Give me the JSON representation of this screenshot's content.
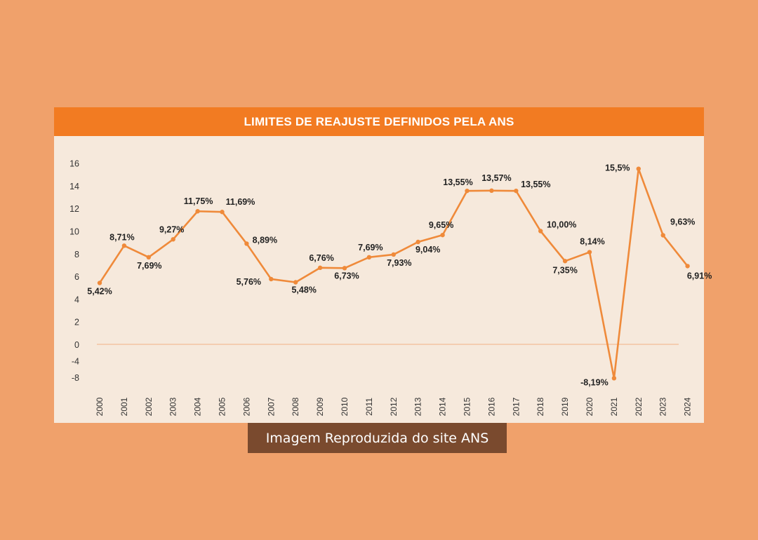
{
  "chart_data": {
    "type": "line",
    "title": "LIMITES DE REAJUSTE DEFINIDOS PELA ANS",
    "x": [
      "2000",
      "2001",
      "2002",
      "2003",
      "2004",
      "2005",
      "2006",
      "2007",
      "2008",
      "2009",
      "2010",
      "2011",
      "2012",
      "2013",
      "2014",
      "2015",
      "2016",
      "2017",
      "2018",
      "2019",
      "2020",
      "2021",
      "2022",
      "2023",
      "2024"
    ],
    "series": [
      {
        "values": [
          5.42,
          8.71,
          7.69,
          9.27,
          11.75,
          11.69,
          8.89,
          5.76,
          5.48,
          6.76,
          6.73,
          7.69,
          7.93,
          9.04,
          9.65,
          13.55,
          13.57,
          13.55,
          10.0,
          7.35,
          8.14,
          -8.19,
          15.5,
          9.63,
          6.91
        ],
        "labels": [
          "5,42%",
          "8,71%",
          "7,69%",
          "9,27%",
          "11,75%",
          "11,69%",
          "8,89%",
          "5,76%",
          "5,48%",
          "6,76%",
          "6,73%",
          "7,69%",
          "7,93%",
          "9,04%",
          "9,65%",
          "13,55%",
          "13,57%",
          "13,55%",
          "10,00%",
          "7,35%",
          "8,14%",
          "-8,19%",
          "15,5%",
          "9,63%",
          "6,91%"
        ]
      }
    ],
    "yticks": [
      {
        "value": 16,
        "label": "16"
      },
      {
        "value": 14,
        "label": "14"
      },
      {
        "value": 12,
        "label": "12"
      },
      {
        "value": 10,
        "label": "10"
      },
      {
        "value": 8,
        "label": "8"
      },
      {
        "value": 6,
        "label": "6"
      },
      {
        "value": 4,
        "label": "4"
      },
      {
        "value": 2,
        "label": "2"
      },
      {
        "value": 0,
        "label": "0"
      },
      {
        "value": -4,
        "label": "-4"
      },
      {
        "value": -8,
        "label": "-8"
      }
    ],
    "ylim": [
      -8,
      16
    ],
    "line_color": "#ef8a3a",
    "zero_line_color": "#f1b184",
    "grid": false,
    "legend": "none"
  },
  "caption": "Imagem Reproduzida do site ANS"
}
